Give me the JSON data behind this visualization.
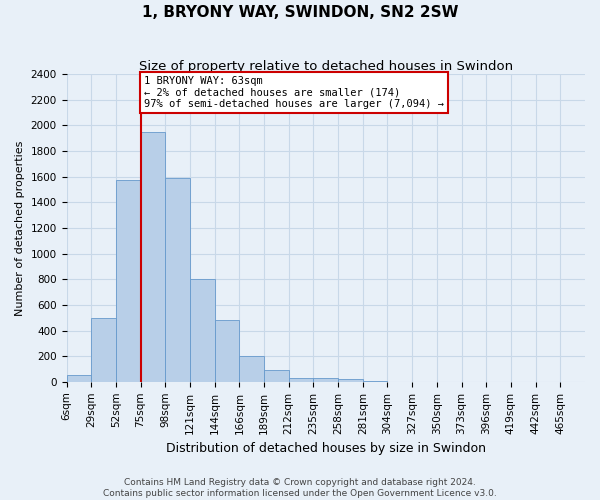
{
  "title": "1, BRYONY WAY, SWINDON, SN2 2SW",
  "subtitle": "Size of property relative to detached houses in Swindon",
  "xlabel": "Distribution of detached houses by size in Swindon",
  "ylabel": "Number of detached properties",
  "footer_line1": "Contains HM Land Registry data © Crown copyright and database right 2024.",
  "footer_line2": "Contains public sector information licensed under the Open Government Licence v3.0.",
  "annotation_title": "1 BRYONY WAY: 63sqm",
  "annotation_line1": "← 2% of detached houses are smaller (174)",
  "annotation_line2": "97% of semi-detached houses are larger (7,094) →",
  "property_size_bin": 2,
  "bin_labels": [
    "6sqm",
    "29sqm",
    "52sqm",
    "75sqm",
    "98sqm",
    "121sqm",
    "144sqm",
    "166sqm",
    "189sqm",
    "212sqm",
    "235sqm",
    "258sqm",
    "281sqm",
    "304sqm",
    "327sqm",
    "350sqm",
    "373sqm",
    "396sqm",
    "419sqm",
    "442sqm",
    "465sqm"
  ],
  "bar_values": [
    50,
    500,
    1575,
    1950,
    1590,
    800,
    480,
    200,
    95,
    30,
    30,
    20,
    5,
    0,
    0,
    0,
    0,
    0,
    0,
    0,
    0
  ],
  "bar_color": "#b8cfe8",
  "bar_edge_color": "#6699cc",
  "vline_bar_index": 2,
  "vline_color": "#cc0000",
  "annotation_box_color": "#cc0000",
  "annotation_bg": "#ffffff",
  "ylim": [
    0,
    2400
  ],
  "yticks": [
    0,
    200,
    400,
    600,
    800,
    1000,
    1200,
    1400,
    1600,
    1800,
    2000,
    2200,
    2400
  ],
  "grid_color": "#c8d8e8",
  "background_color": "#e8f0f8",
  "title_fontsize": 11,
  "subtitle_fontsize": 9.5,
  "xlabel_fontsize": 9,
  "ylabel_fontsize": 8,
  "tick_fontsize": 7.5,
  "footer_fontsize": 6.5,
  "annotation_fontsize": 7.5
}
